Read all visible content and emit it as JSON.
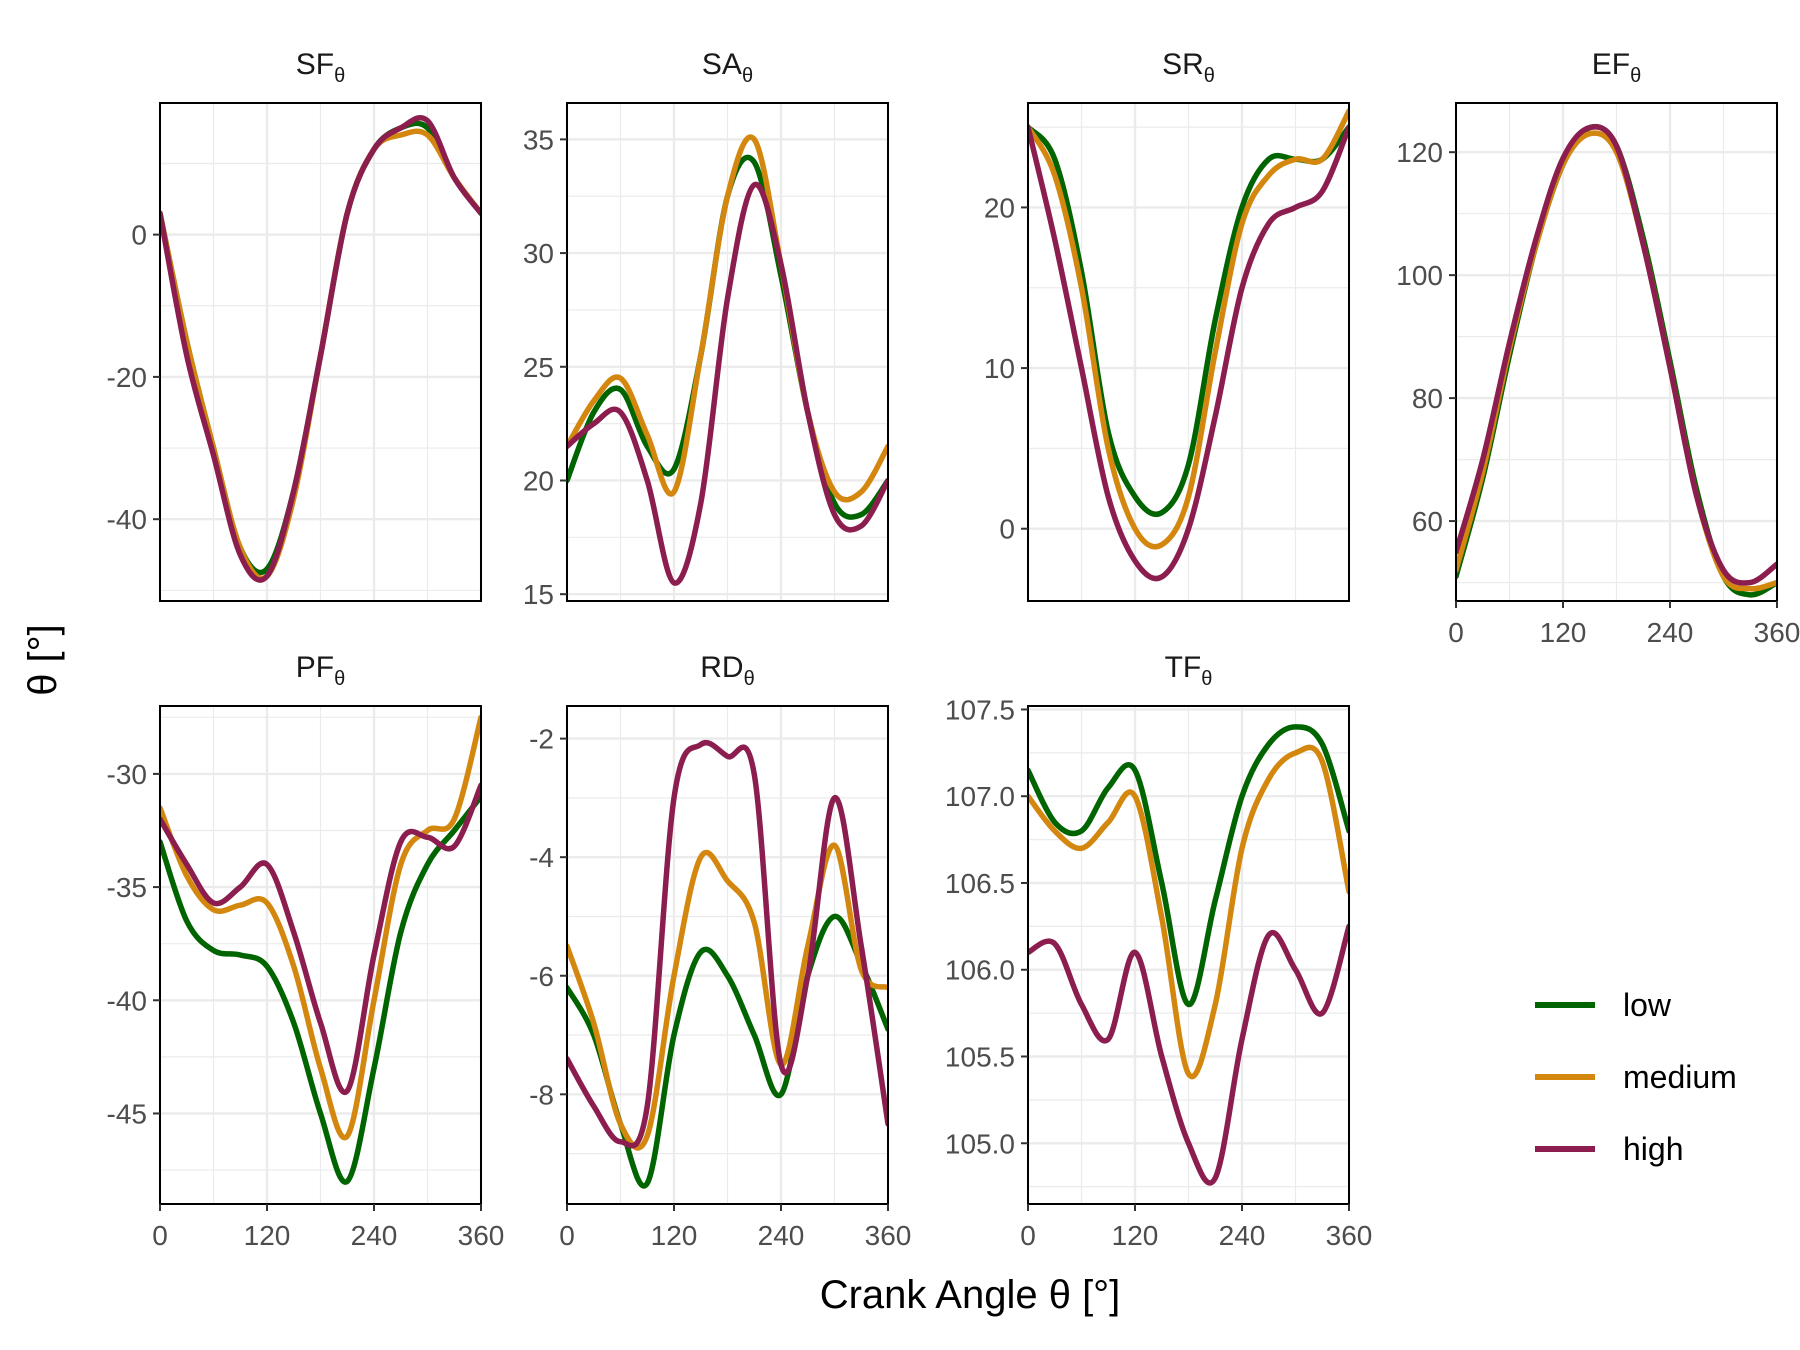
{
  "colors": {
    "low": "#006400",
    "medium": "#D4870E",
    "high": "#8B1E4F",
    "grid": "#ebebeb",
    "border": "#000000"
  },
  "chart_data": {
    "type": "line",
    "xlabel": "Crank Angle θ [°]",
    "ylabel": "θ [°]",
    "legend": {
      "position": "bottom-right",
      "entries": [
        "low",
        "medium",
        "high"
      ]
    },
    "grid": true,
    "xlim": [
      0,
      360
    ],
    "xticks": [
      0,
      120,
      240,
      360
    ],
    "x": [
      0,
      30,
      60,
      90,
      120,
      150,
      180,
      210,
      240,
      270,
      300,
      330,
      360
    ],
    "panels": [
      {
        "name": "SF",
        "subscript": "θ",
        "ylim": [
          -51.5,
          18.5
        ],
        "yticks": [
          -40,
          -20,
          0
        ],
        "series": [
          {
            "name": "low",
            "values": [
              3,
              -15,
              -30,
              -44,
              -47,
              -36,
              -17,
              3,
              12,
              15,
              15,
              8,
              3
            ]
          },
          {
            "name": "medium",
            "values": [
              3,
              -15,
              -30,
              -44,
              -48,
              -37,
              -17,
              3,
              12,
              14,
              14,
              8,
              3
            ]
          },
          {
            "name": "high",
            "values": [
              3,
              -17,
              -31,
              -45,
              -48,
              -36,
              -17,
              3,
              12,
              15,
              16,
              8,
              3
            ]
          }
        ]
      },
      {
        "name": "SA",
        "subscript": "θ",
        "ylim": [
          14.7,
          36.6
        ],
        "yticks": [
          15,
          20,
          25,
          30,
          35
        ],
        "series": [
          {
            "name": "low",
            "values": [
              20,
              23,
              24,
              21.5,
              20.5,
              25.5,
              32.5,
              34,
              29,
              23,
              19,
              18.5,
              20
            ]
          },
          {
            "name": "medium",
            "values": [
              21.5,
              23.5,
              24.5,
              22,
              19.5,
              25.5,
              32.5,
              35,
              29.5,
              23,
              19.5,
              19.5,
              21.5
            ]
          },
          {
            "name": "high",
            "values": [
              21.5,
              22.5,
              23,
              20,
              15.5,
              19,
              28,
              33,
              29.5,
              23,
              18.5,
              18,
              20
            ]
          }
        ]
      },
      {
        "name": "SR",
        "subscript": "θ",
        "ylim": [
          -4.5,
          26.5
        ],
        "yticks": [
          0,
          10,
          20
        ],
        "series": [
          {
            "name": "low",
            "values": [
              25,
              23,
              16,
              6,
              2,
              1,
              4,
              13,
              20,
              23,
              23,
              23,
              25
            ]
          },
          {
            "name": "medium",
            "values": [
              25,
              22,
              15,
              5,
              0,
              -1,
              2,
              11,
              19,
              22,
              23,
              23,
              26
            ]
          },
          {
            "name": "high",
            "values": [
              25,
              18,
              10,
              2,
              -2,
              -3,
              0,
              7,
              15,
              19,
              20,
              21,
              25
            ]
          }
        ]
      },
      {
        "name": "EF",
        "subscript": "θ",
        "ylim": [
          47,
          128
        ],
        "yticks": [
          60,
          80,
          100,
          120
        ],
        "series": [
          {
            "name": "low",
            "values": [
              51,
              67,
              87,
              105,
              118,
              124,
              121,
              106,
              86,
              65,
              51,
              48,
              50
            ]
          },
          {
            "name": "medium",
            "values": [
              52,
              68,
              88,
              105,
              118,
              123,
              120,
              105,
              85,
              64,
              51,
              49,
              50
            ]
          },
          {
            "name": "high",
            "values": [
              55,
              70,
              89,
              106,
              119,
              124,
              121,
              105,
              85,
              64,
              52,
              50,
              53
            ]
          }
        ]
      },
      {
        "name": "PF",
        "subscript": "θ",
        "ylim": [
          -49,
          -27
        ],
        "yticks": [
          -45,
          -40,
          -35,
          -30
        ],
        "series": [
          {
            "name": "low",
            "values": [
              -33,
              -36.5,
              -37.8,
              -38,
              -38.5,
              -41,
              -45,
              -48,
              -43,
              -37,
              -34,
              -32.5,
              -31
            ]
          },
          {
            "name": "medium",
            "values": [
              -31.5,
              -34.5,
              -36,
              -35.8,
              -35.7,
              -38.5,
              -43,
              -46,
              -40,
              -34,
              -32.5,
              -32,
              -27.5
            ]
          },
          {
            "name": "high",
            "values": [
              -32,
              -34,
              -35.7,
              -35,
              -34,
              -37,
              -41,
              -44,
              -38,
              -33,
              -32.8,
              -33.2,
              -30.5
            ]
          }
        ]
      },
      {
        "name": "RD",
        "subscript": "θ",
        "ylim": [
          -9.85,
          -1.45
        ],
        "yticks": [
          -8,
          -6,
          -4,
          -2
        ],
        "series": [
          {
            "name": "low",
            "values": [
              -6.2,
              -7,
              -8.5,
              -9.5,
              -7,
              -5.6,
              -6,
              -7,
              -8,
              -6,
              -5,
              -5.8,
              -6.9
            ]
          },
          {
            "name": "medium",
            "values": [
              -5.5,
              -6.8,
              -8.5,
              -8.7,
              -6,
              -4,
              -4.4,
              -5.1,
              -7.5,
              -5.5,
              -3.8,
              -5.9,
              -6.2
            ]
          },
          {
            "name": "high",
            "values": [
              -7.4,
              -8.2,
              -8.8,
              -8.2,
              -3,
              -2.1,
              -2.3,
              -2.6,
              -7.5,
              -6,
              -3,
              -5.5,
              -8.5
            ]
          }
        ]
      },
      {
        "name": "TF",
        "subscript": "θ",
        "ylim": [
          104.65,
          107.52
        ],
        "yticks": [
          105.0,
          105.5,
          106.0,
          106.5,
          107.0,
          107.5
        ],
        "series": [
          {
            "name": "low",
            "values": [
              107.15,
              106.85,
              106.8,
              107.05,
              107.15,
              106.5,
              105.8,
              106.4,
              107.0,
              107.3,
              107.4,
              107.3,
              106.8
            ]
          },
          {
            "name": "medium",
            "values": [
              107.0,
              106.8,
              106.7,
              106.85,
              107.0,
              106.3,
              105.4,
              105.8,
              106.7,
              107.1,
              107.25,
              107.2,
              106.45
            ]
          },
          {
            "name": "high",
            "values": [
              106.1,
              106.15,
              105.8,
              105.6,
              106.1,
              105.5,
              105.0,
              104.8,
              105.6,
              106.2,
              106.0,
              105.75,
              106.25
            ]
          }
        ]
      }
    ]
  }
}
